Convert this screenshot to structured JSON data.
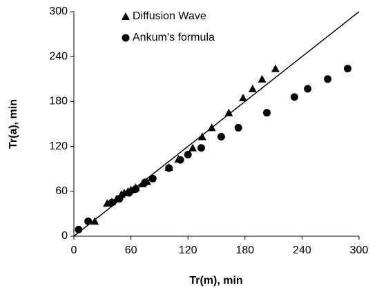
{
  "chart_data": {
    "type": "scatter",
    "x_label": "Tr(m), min",
    "y_label": "Tr(a), min",
    "xlim": [
      0,
      300
    ],
    "ylim": [
      0,
      300
    ],
    "xticks": [
      0,
      60,
      120,
      180,
      240,
      300
    ],
    "yticks": [
      0,
      60,
      120,
      180,
      240,
      300
    ],
    "grid": false,
    "legend": "top-left",
    "diagonal": true,
    "series": [
      {
        "name": "Diffusion Wave",
        "color": "#000000",
        "marker": "triangle",
        "x": [
          22,
          35,
          40,
          45,
          50,
          53,
          57,
          60,
          65,
          72,
          77,
          82,
          100,
          110,
          125,
          135,
          145,
          163,
          178,
          188,
          198,
          212
        ],
        "values": [
          20,
          44,
          46,
          50,
          56,
          58,
          60,
          62,
          65,
          70,
          73,
          78,
          92,
          103,
          118,
          133,
          145,
          165,
          185,
          197,
          210,
          224
        ]
      },
      {
        "name": "Ankum’s formula",
        "color": "#000000",
        "marker": "circle",
        "x": [
          5,
          15,
          40,
          48,
          58,
          65,
          75,
          83,
          100,
          112,
          120,
          134,
          155,
          173,
          203,
          232,
          246,
          267,
          288
        ],
        "values": [
          9,
          20,
          45,
          50,
          58,
          63,
          72,
          77,
          91,
          102,
          109,
          118,
          133,
          145,
          165,
          186,
          197,
          210,
          224
        ]
      }
    ]
  }
}
